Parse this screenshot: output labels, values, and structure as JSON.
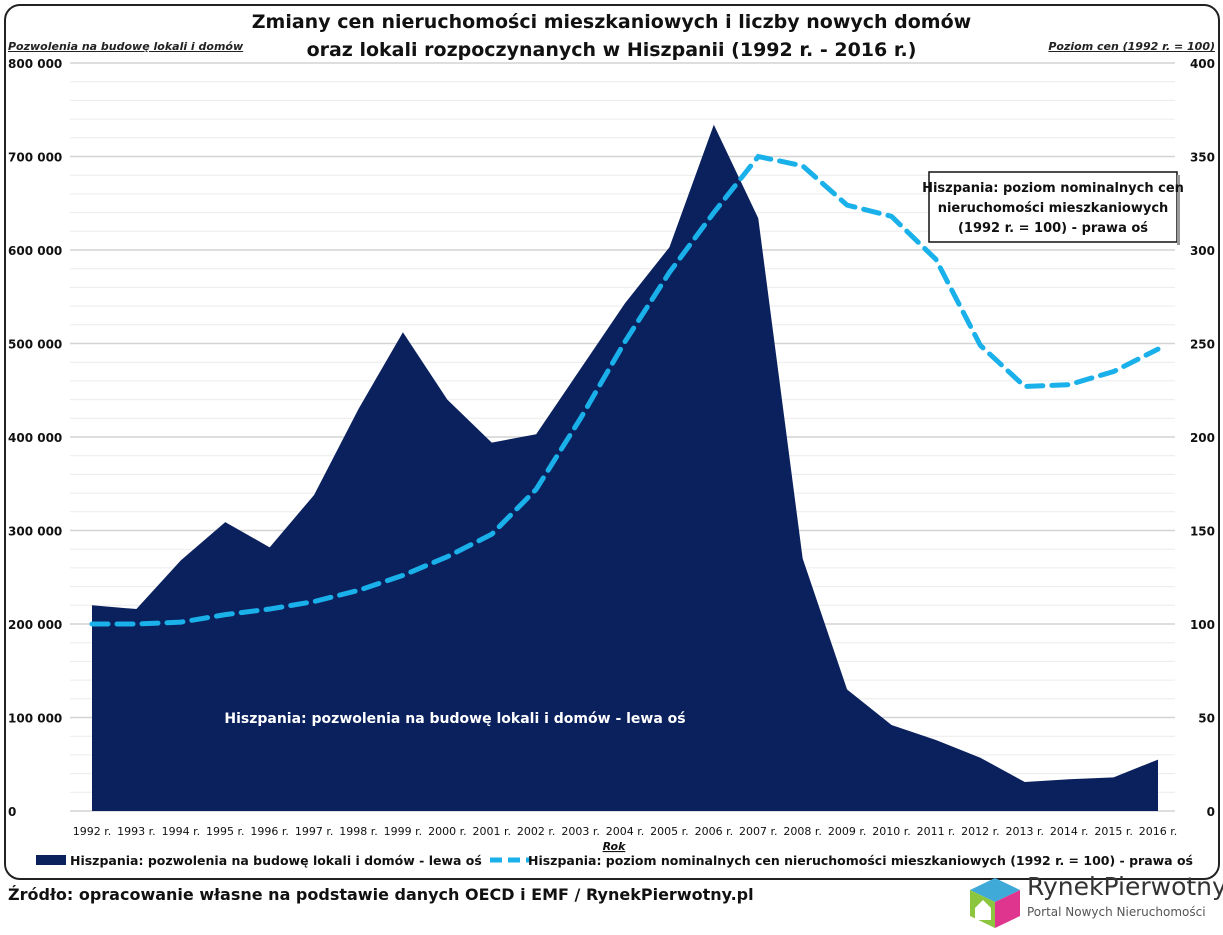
{
  "chart_data": {
    "type": "area+line",
    "title_line1": "Zmiany cen nieruchomości mieszkaniowych i liczby nowych domów",
    "title_line2": "oraz lokali rozpoczynanych w Hiszpanii (1992 r. - 2016 r.)",
    "ylabel_left": "Pozwolenia na budowę lokali i domów",
    "ylabel_right": "Poziom cen (1992 r. = 100)",
    "xlabel": "Rok",
    "ylim_left": [
      0,
      800000
    ],
    "ylim_right": [
      0,
      400
    ],
    "left_ticks": [
      "0",
      "100 000",
      "200 000",
      "300 000",
      "400 000",
      "500 000",
      "600 000",
      "700 000",
      "800 000"
    ],
    "right_ticks": [
      "0",
      "50",
      "100",
      "150",
      "200",
      "250",
      "300",
      "350",
      "400"
    ],
    "categories": [
      "1992 r.",
      "1993 r.",
      "1994 r.",
      "1995 r.",
      "1996 r.",
      "1997 r.",
      "1998 r.",
      "1999 r.",
      "2000 r.",
      "2001 r.",
      "2002 r.",
      "2003 r.",
      "2004 r.",
      "2005 r.",
      "2006 r.",
      "2007 r.",
      "2008 r.",
      "2009 r.",
      "2010 r.",
      "2011 r.",
      "2012 r.",
      "2013 r.",
      "2014 r.",
      "2015 r.",
      "2016 r."
    ],
    "series": [
      {
        "name": "Hiszpania: pozwolenia na budowę lokali i domów - lewa oś",
        "axis": "left",
        "type": "area",
        "color": "#0a215e",
        "values": [
          220000,
          216000,
          268000,
          309000,
          282000,
          338000,
          430000,
          512000,
          440000,
          394000,
          403000,
          473000,
          543000,
          603000,
          734000,
          634000,
          270000,
          130000,
          92000,
          76000,
          57000,
          31000,
          34000,
          36000,
          55000
        ]
      },
      {
        "name": "Hiszpania: poziom nominalnych cen nieruchomości mieszkaniowych (1992 r. = 100) - prawa oś",
        "axis": "right",
        "type": "line",
        "style": "dashed",
        "color": "#1ab0ea",
        "values": [
          100,
          100,
          101,
          105,
          108,
          112,
          118,
          126,
          136,
          148,
          172,
          210,
          251,
          288,
          320,
          350,
          345,
          324,
          318,
          295,
          249,
          227,
          228,
          235,
          247
        ]
      }
    ],
    "annotations": {
      "area_label": "Hiszpania: pozwolenia na budowę lokali i domów - lewa oś",
      "line_box": [
        "Hiszpania: poziom nominalnych cen",
        "nieruchomości mieszkaniowych",
        "(1992 r. = 100) - prawa oś"
      ]
    },
    "legend": "bottom"
  },
  "source": "Źródło: opracowanie własne na podstawie danych OECD i EMF / RynekPierwotny.pl",
  "logo": {
    "name": "RynekPierwotny",
    "subtitle": "Portal Nowych Nieruchomości"
  }
}
